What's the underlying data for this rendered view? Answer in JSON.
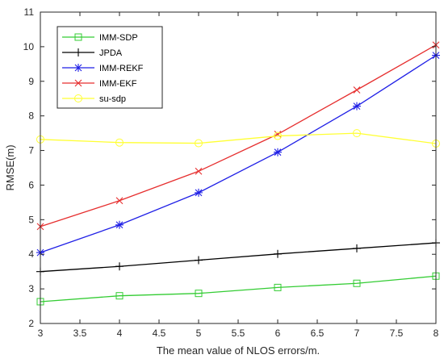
{
  "chart_data": {
    "type": "line",
    "title": "",
    "xlabel": "The mean value of NLOS errors/m.",
    "ylabel": "RMSE(m)",
    "xlim": [
      3,
      8
    ],
    "ylim": [
      2,
      11
    ],
    "x": [
      3,
      4,
      5,
      6,
      7,
      8
    ],
    "xticks": [
      "3",
      "3.5",
      "4",
      "4.5",
      "5",
      "5.5",
      "6",
      "6.5",
      "7",
      "7.5",
      "8"
    ],
    "xtick_values": [
      3,
      3.5,
      4,
      4.5,
      5,
      5.5,
      6,
      6.5,
      7,
      7.5,
      8
    ],
    "yticks": [
      "2",
      "3",
      "4",
      "5",
      "6",
      "7",
      "8",
      "9",
      "10",
      "11"
    ],
    "ytick_values": [
      2,
      3,
      4,
      5,
      6,
      7,
      8,
      9,
      10,
      11
    ],
    "grid": false,
    "legend_position": "top-left",
    "series": [
      {
        "name": "IMM-SDP",
        "color": "#33cc33",
        "marker": "square",
        "values": [
          2.63,
          2.8,
          2.87,
          3.04,
          3.16,
          3.37
        ]
      },
      {
        "name": "JPDA",
        "color": "#000000",
        "marker": "plus",
        "values": [
          3.5,
          3.65,
          3.83,
          4.01,
          4.17,
          4.33
        ]
      },
      {
        "name": "IMM-REKF",
        "color": "#1f1fe6",
        "marker": "asterisk",
        "values": [
          4.05,
          4.85,
          5.78,
          6.95,
          8.28,
          9.75
        ]
      },
      {
        "name": "IMM-EKF",
        "color": "#e62e2e",
        "marker": "cross",
        "values": [
          4.8,
          5.55,
          6.4,
          7.47,
          8.75,
          10.05
        ]
      },
      {
        "name": "su-sdp",
        "color": "#ffff33",
        "marker": "circle",
        "values": [
          7.32,
          7.23,
          7.21,
          7.42,
          7.5,
          7.2
        ]
      }
    ]
  }
}
